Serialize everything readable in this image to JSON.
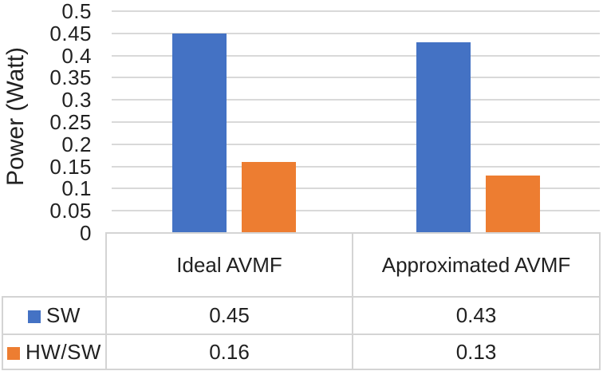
{
  "chart_data": {
    "type": "bar",
    "title": "",
    "ylabel": "Power (Watt)",
    "xlabel": "",
    "ylim": [
      0,
      0.5
    ],
    "ytick_step": 0.05,
    "yticks": [
      "0.5",
      "0.45",
      "0.4",
      "0.35",
      "0.3",
      "0.25",
      "0.2",
      "0.15",
      "0.1",
      "0.05",
      "0"
    ],
    "grid": true,
    "legend_position": "data-table-left",
    "categories": [
      "Ideal AVMF",
      "Approximated AVMF"
    ],
    "series": [
      {
        "name": "SW",
        "color": "#4472C4",
        "values": [
          0.45,
          0.43
        ]
      },
      {
        "name": "HW/SW",
        "color": "#ED7D31",
        "values": [
          0.16,
          0.13
        ]
      }
    ],
    "data_table": {
      "row_labels": [
        "SW",
        "HW/SW"
      ],
      "rows": [
        [
          "0.45",
          "0.43"
        ],
        [
          "0.16",
          "0.13"
        ]
      ]
    }
  },
  "colors": {
    "bar_sw": "#4472C4",
    "bar_hwsw": "#ED7D31",
    "gridline": "#D9D9D9",
    "table_border": "#D4D4D4",
    "text": "#212121",
    "background": "#FFFFFF"
  }
}
